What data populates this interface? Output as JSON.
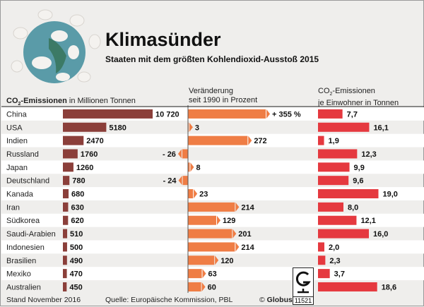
{
  "title": "Klimasünder",
  "subtitle": "Staaten mit dem größten Kohlendioxid-Ausstoß 2015",
  "headers": {
    "col1_bold_prefix": "CO",
    "col1_sub": "2",
    "col1_bold_suffix": "-Emissionen",
    "col1_rest": " in Millionen Tonnen",
    "col2_line1": "Veränderung",
    "col2_line2": "seit 1990 in Prozent",
    "col3_prefix": "CO",
    "col3_sub": "2",
    "col3_suffix": "-Emissionen",
    "col3_line2": "je Einwohner in Tonnen"
  },
  "footer": {
    "stand": "Stand November 2016",
    "source": "Quelle: Europäische Kommission, PBL",
    "copyright_prefix": "© ",
    "copyright_brand": "Globus",
    "graphic_number": "11521"
  },
  "colors": {
    "total": "#8b3f3a",
    "change": "#ef7d45",
    "per_capita": "#e5393f",
    "stripe": "#ffffff"
  },
  "chart_data": {
    "type": "bar",
    "title": "Klimasünder",
    "categories": [
      "China",
      "USA",
      "Indien",
      "Russland",
      "Japan",
      "Deutschland",
      "Kanada",
      "Iran",
      "Südkorea",
      "Saudi-Arabien",
      "Indonesien",
      "Brasilien",
      "Mexiko",
      "Australien"
    ],
    "series": [
      {
        "name": "CO2-Emissionen in Millionen Tonnen",
        "values": [
          10720,
          5180,
          2470,
          1760,
          1260,
          780,
          680,
          630,
          620,
          510,
          500,
          490,
          470,
          450
        ],
        "labels": [
          "10 720",
          "5180",
          "2470",
          "1760",
          "1260",
          "780",
          "680",
          "630",
          "620",
          "510",
          "500",
          "490",
          "470",
          "450"
        ]
      },
      {
        "name": "Veränderung seit 1990 in Prozent",
        "values": [
          355,
          3,
          272,
          -26,
          8,
          -24,
          23,
          214,
          129,
          201,
          214,
          120,
          63,
          60
        ],
        "labels": [
          "+ 355 %",
          "3",
          "272",
          "- 26",
          "8",
          "- 24",
          "23",
          "214",
          "129",
          "201",
          "214",
          "120",
          "63",
          "60"
        ]
      },
      {
        "name": "CO2-Emissionen je Einwohner in Tonnen",
        "values": [
          7.7,
          16.1,
          1.9,
          12.3,
          9.9,
          9.6,
          19.0,
          8.0,
          12.1,
          16.0,
          2.0,
          2.3,
          3.7,
          18.6
        ],
        "labels": [
          "7,7",
          "16,1",
          "1,9",
          "12,3",
          "9,9",
          "9,6",
          "19,0",
          "8,0",
          "12,1",
          "16,0",
          "2,0",
          "2,3",
          "3,7",
          "18,6"
        ]
      }
    ]
  }
}
